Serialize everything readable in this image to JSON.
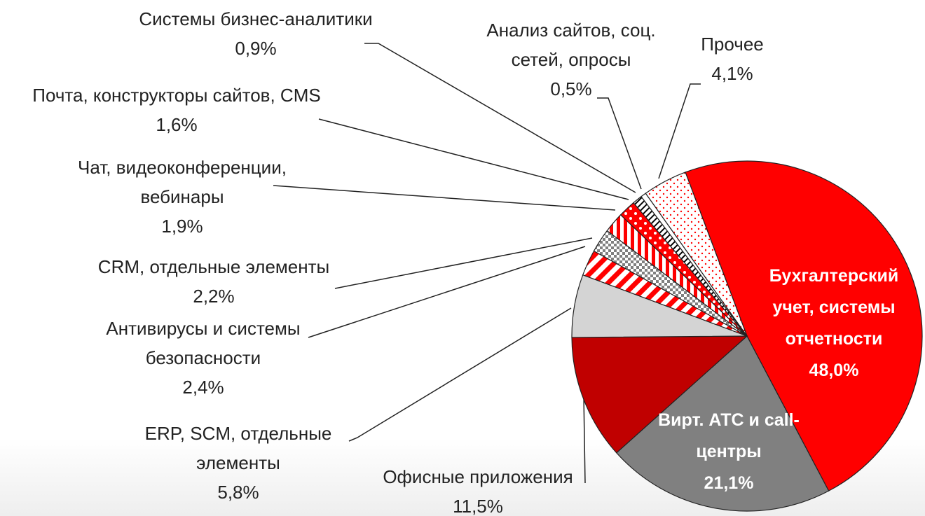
{
  "chart_data": {
    "type": "pie",
    "categories": [
      "Бухгалтерский\nучет, системы\nотчетности",
      "Вирт. АТС и call-\nцентры",
      "Офисные приложения",
      "ERP, SCM, отдельные\nэлементы",
      "Антивирусы и системы\nбезопасности",
      "CRM, отдельные элементы",
      "Чат, видеоконференции,\nвебинары",
      "Почта, конструкторы сайтов, CMS",
      "Системы бизнес-аналитики",
      "Анализ сайтов, соц.\nсетей, опросы",
      "Прочее"
    ],
    "values": [
      48.0,
      21.1,
      11.5,
      5.8,
      2.4,
      2.2,
      1.9,
      1.6,
      0.9,
      0.5,
      4.1
    ],
    "value_labels": [
      "48,0%",
      "21,1%",
      "11,5%",
      "5,8%",
      "2,4%",
      "2,2%",
      "1,9%",
      "1,6%",
      "0,9%",
      "0,5%",
      "4,1%"
    ],
    "colors": [
      "#ff0000",
      "#808080",
      "#c00000",
      "#d4d4d4",
      "#ff0000",
      "#808080",
      "#ff0000",
      "#ff0000",
      "#000000",
      "#ffffff",
      "#ff0000"
    ]
  }
}
